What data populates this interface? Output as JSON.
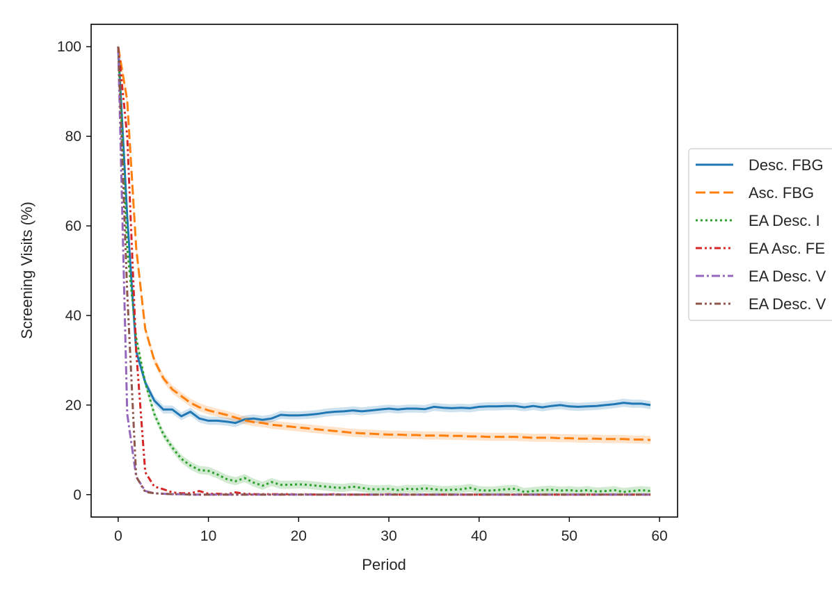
{
  "chart_data": {
    "type": "line",
    "xlabel": "Period",
    "ylabel": "Screening Visits (%)",
    "xlim": [
      -3,
      62
    ],
    "ylim": [
      -5,
      105
    ],
    "xticks": [
      0,
      10,
      20,
      30,
      40,
      50,
      60
    ],
    "yticks": [
      0,
      20,
      40,
      60,
      80,
      100
    ],
    "grid": false,
    "legend_position": "right, outside plot (cropped)",
    "series": [
      {
        "name": "Desc. FBG",
        "color": "#1f77b4",
        "dash": "solid",
        "band": true,
        "x": [
          0,
          1,
          2,
          3,
          4,
          5,
          6,
          7,
          8,
          9,
          10,
          11,
          12,
          13,
          14,
          15,
          16,
          17,
          18,
          19,
          20,
          21,
          22,
          23,
          24,
          25,
          26,
          27,
          28,
          29,
          30,
          31,
          32,
          33,
          34,
          35,
          36,
          37,
          38,
          39,
          40,
          41,
          42,
          43,
          44,
          45,
          46,
          47,
          48,
          49,
          50,
          51,
          52,
          53,
          54,
          55,
          56,
          57,
          58,
          59
        ],
        "values": [
          100,
          62,
          32,
          25,
          21,
          19,
          19,
          17.5,
          18.5,
          17,
          16.5,
          16.5,
          16.3,
          16,
          16.8,
          17,
          16.7,
          17,
          17.8,
          17.7,
          17.7,
          17.8,
          18,
          18.3,
          18.5,
          18.6,
          18.8,
          18.6,
          18.8,
          19,
          19.2,
          19,
          19.2,
          19.2,
          19.1,
          19.6,
          19.4,
          19.3,
          19.4,
          19.3,
          19.6,
          19.7,
          19.7,
          19.8,
          19.8,
          19.5,
          19.8,
          19.5,
          19.8,
          20,
          19.7,
          19.6,
          19.7,
          19.8,
          20,
          20.2,
          20.5,
          20.3,
          20.3,
          20
        ]
      },
      {
        "name": "Asc. FBG",
        "color": "#ff7f0e",
        "dash": "dashed",
        "band": true,
        "x": [
          0,
          1,
          2,
          3,
          4,
          5,
          6,
          7,
          8,
          9,
          10,
          11,
          12,
          13,
          14,
          15,
          16,
          17,
          18,
          19,
          20,
          21,
          22,
          23,
          24,
          25,
          26,
          27,
          28,
          29,
          30,
          31,
          32,
          33,
          34,
          35,
          36,
          37,
          38,
          39,
          40,
          41,
          42,
          43,
          44,
          45,
          46,
          47,
          48,
          49,
          50,
          51,
          52,
          53,
          54,
          55,
          56,
          57,
          58,
          59
        ],
        "values": [
          100,
          88,
          55,
          37,
          30,
          26,
          23.5,
          22,
          20.5,
          19.5,
          18.8,
          18.3,
          17.8,
          17.2,
          16.6,
          16.2,
          16,
          15.6,
          15.4,
          15.2,
          15,
          14.8,
          14.6,
          14.4,
          14.2,
          14,
          13.8,
          13.7,
          13.6,
          13.5,
          13.4,
          13.4,
          13.3,
          13.3,
          13.2,
          13.2,
          13.2,
          13.1,
          13.1,
          13,
          13,
          12.9,
          12.9,
          12.9,
          12.9,
          12.8,
          12.7,
          12.7,
          12.7,
          12.6,
          12.6,
          12.5,
          12.5,
          12.5,
          12.4,
          12.4,
          12.4,
          12.3,
          12.3,
          12.2
        ]
      },
      {
        "name": "EA Desc. FBG",
        "color": "#2ca02c",
        "dash": "dotted",
        "band": true,
        "x": [
          0,
          1,
          2,
          3,
          4,
          5,
          6,
          7,
          8,
          9,
          10,
          11,
          12,
          13,
          14,
          15,
          16,
          17,
          18,
          19,
          20,
          21,
          22,
          23,
          24,
          25,
          26,
          27,
          28,
          29,
          30,
          31,
          32,
          33,
          34,
          35,
          36,
          37,
          38,
          39,
          40,
          41,
          42,
          43,
          44,
          45,
          46,
          47,
          48,
          49,
          50,
          51,
          52,
          53,
          54,
          55,
          56,
          57,
          58,
          59
        ],
        "values": [
          100,
          55,
          35,
          25,
          18,
          13.5,
          10.5,
          8,
          6.5,
          5.5,
          5.3,
          4.5,
          3.5,
          3,
          3.7,
          2.7,
          2,
          2.8,
          2.2,
          2.2,
          2.3,
          2.2,
          2,
          1.8,
          1.6,
          1.5,
          1.8,
          1.5,
          1.2,
          1.2,
          1.3,
          1,
          1.3,
          1.2,
          1.4,
          1.2,
          1,
          1.1,
          1.2,
          1.5,
          1,
          0.9,
          1,
          1.2,
          1.3,
          0.6,
          0.8,
          1,
          1.1,
          0.9,
          1,
          0.8,
          1,
          0.7,
          0.8,
          1,
          0.6,
          0.8,
          1,
          0.8
        ]
      },
      {
        "name": "EA Asc. FBG",
        "color": "#d62728",
        "dash": "dashdotdot",
        "band": false,
        "x": [
          0,
          1,
          2,
          3,
          4,
          5,
          6,
          7,
          8,
          9,
          10,
          11,
          12,
          13,
          14,
          15,
          16,
          17,
          18,
          19,
          20,
          21,
          22,
          23,
          24,
          25,
          26,
          27,
          28,
          29,
          30,
          31,
          32,
          33,
          34,
          35,
          36,
          37,
          38,
          39,
          40,
          41,
          42,
          43,
          44,
          45,
          46,
          47,
          48,
          49,
          50,
          51,
          52,
          53,
          54,
          55,
          56,
          57,
          58,
          59
        ],
        "values": [
          100,
          80,
          32,
          5,
          1.8,
          1.2,
          0.5,
          0.3,
          0.3,
          0.8,
          0.2,
          0.2,
          0.1,
          0.5,
          0.2,
          0.1,
          0.1,
          0.1,
          0.1,
          0.1,
          0,
          0.1,
          0,
          0,
          0.1,
          0,
          0,
          0,
          0,
          0,
          0.1,
          0,
          0,
          0,
          0,
          0,
          0,
          0,
          0,
          0,
          0,
          0,
          0,
          0,
          0,
          0,
          0,
          0,
          0,
          0,
          0,
          0,
          0,
          0,
          0,
          0,
          0,
          0,
          0,
          0
        ]
      },
      {
        "name": "EA Desc. VIS",
        "color": "#9467bd",
        "dash": "dashdot",
        "band": false,
        "x": [
          0,
          1,
          2,
          3,
          4,
          5,
          6,
          7,
          8,
          9,
          10,
          11,
          12,
          13,
          14,
          15,
          16,
          17,
          18,
          19,
          20,
          21,
          22,
          23,
          24,
          25,
          26,
          27,
          28,
          29,
          30,
          31,
          32,
          33,
          34,
          35,
          36,
          37,
          38,
          39,
          40,
          41,
          42,
          43,
          44,
          45,
          46,
          47,
          48,
          49,
          50,
          51,
          52,
          53,
          54,
          55,
          56,
          57,
          58,
          59
        ],
        "values": [
          100,
          18,
          4,
          0.8,
          0.3,
          0.2,
          0.1,
          0.1,
          0,
          0,
          0,
          0,
          0,
          0,
          0,
          0,
          0,
          0,
          0,
          0,
          0,
          0,
          0,
          0,
          0,
          0,
          0,
          0,
          0,
          0,
          0,
          0,
          0,
          0,
          0,
          0,
          0,
          0,
          0,
          0,
          0,
          0,
          0,
          0,
          0,
          0,
          0,
          0,
          0,
          0,
          0,
          0,
          0,
          0,
          0,
          0,
          0,
          0,
          0,
          0
        ]
      },
      {
        "name": "EA Desc. VIS",
        "color": "#8c564b",
        "dash": "dashdotdot",
        "band": false,
        "x": [
          0,
          1,
          2,
          3,
          4,
          5,
          6,
          7,
          8,
          9,
          10,
          11,
          12,
          13,
          14,
          15,
          16,
          17,
          18,
          19,
          20,
          21,
          22,
          23,
          24,
          25,
          26,
          27,
          28,
          29,
          30,
          31,
          32,
          33,
          34,
          35,
          36,
          37,
          38,
          39,
          40,
          41,
          42,
          43,
          44,
          45,
          46,
          47,
          48,
          49,
          50,
          51,
          52,
          53,
          54,
          55,
          56,
          57,
          58,
          59
        ],
        "values": [
          100,
          45,
          4,
          0.6,
          0.3,
          0.2,
          0.1,
          0.1,
          0,
          0,
          0,
          0,
          0,
          0,
          0,
          0,
          0,
          0,
          0,
          0,
          0,
          0,
          0,
          0,
          0,
          0,
          0,
          0,
          0,
          0,
          0,
          0,
          0,
          0,
          0,
          0,
          0,
          0,
          0,
          0,
          0,
          0,
          0,
          0,
          0,
          0,
          0,
          0,
          0,
          0,
          0,
          0,
          0,
          0,
          0,
          0,
          0,
          0,
          0,
          0
        ]
      }
    ]
  },
  "legend": {
    "entries": [
      {
        "label": "Desc. FBG"
      },
      {
        "label": "Asc. FBG"
      },
      {
        "label": "EA Desc. I"
      },
      {
        "label": "EA Asc. FE"
      },
      {
        "label": "EA Desc. V"
      },
      {
        "label": "EA Desc. V"
      }
    ]
  }
}
